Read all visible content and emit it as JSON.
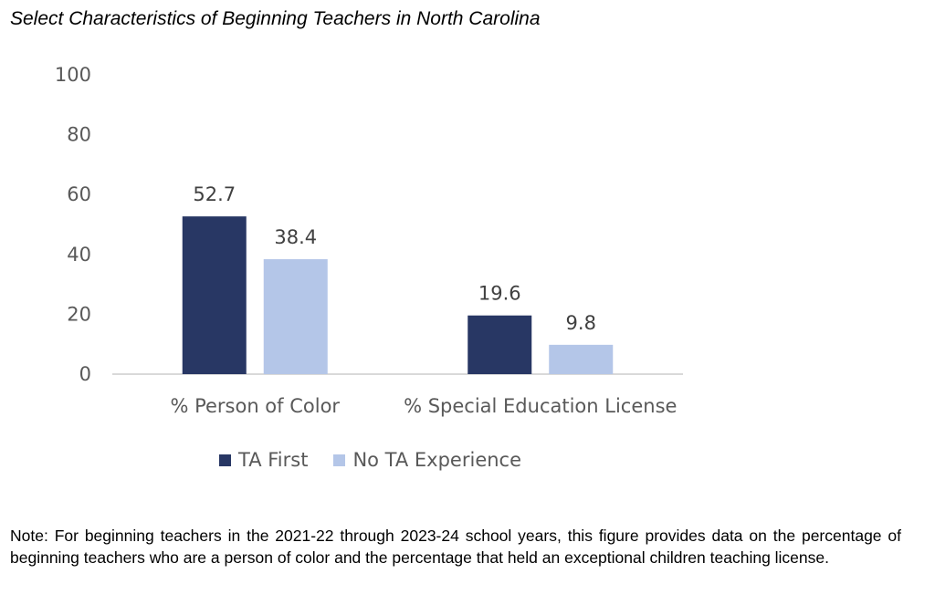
{
  "title": "Select Characteristics of Beginning Teachers in North Carolina",
  "note": "Note: For beginning teachers in the 2021-22 through 2023-24 school years, this figure provides data on the percentage of beginning teachers who are a person of color and the percentage that held an exceptional children teaching license.",
  "colors": {
    "ta_first": "#283764",
    "no_ta": "#b4c6e8",
    "axis": "#d9d9d9"
  },
  "chart_data": {
    "type": "bar",
    "title": "Select Characteristics of Beginning Teachers in North Carolina",
    "categories": [
      "% Person of Color",
      "% Special Education License"
    ],
    "series": [
      {
        "name": "TA First",
        "values": [
          52.7,
          19.6
        ],
        "labels": [
          "52.7",
          "19.6"
        ],
        "color": "#283764"
      },
      {
        "name": "No TA Experience",
        "values": [
          38.4,
          9.8
        ],
        "labels": [
          "38.4",
          "9.8"
        ],
        "color": "#b4c6e8"
      }
    ],
    "ylim": [
      0,
      100
    ],
    "yticks": [
      0,
      20,
      40,
      60,
      80,
      100
    ],
    "grid": false,
    "legend": "bottom"
  }
}
